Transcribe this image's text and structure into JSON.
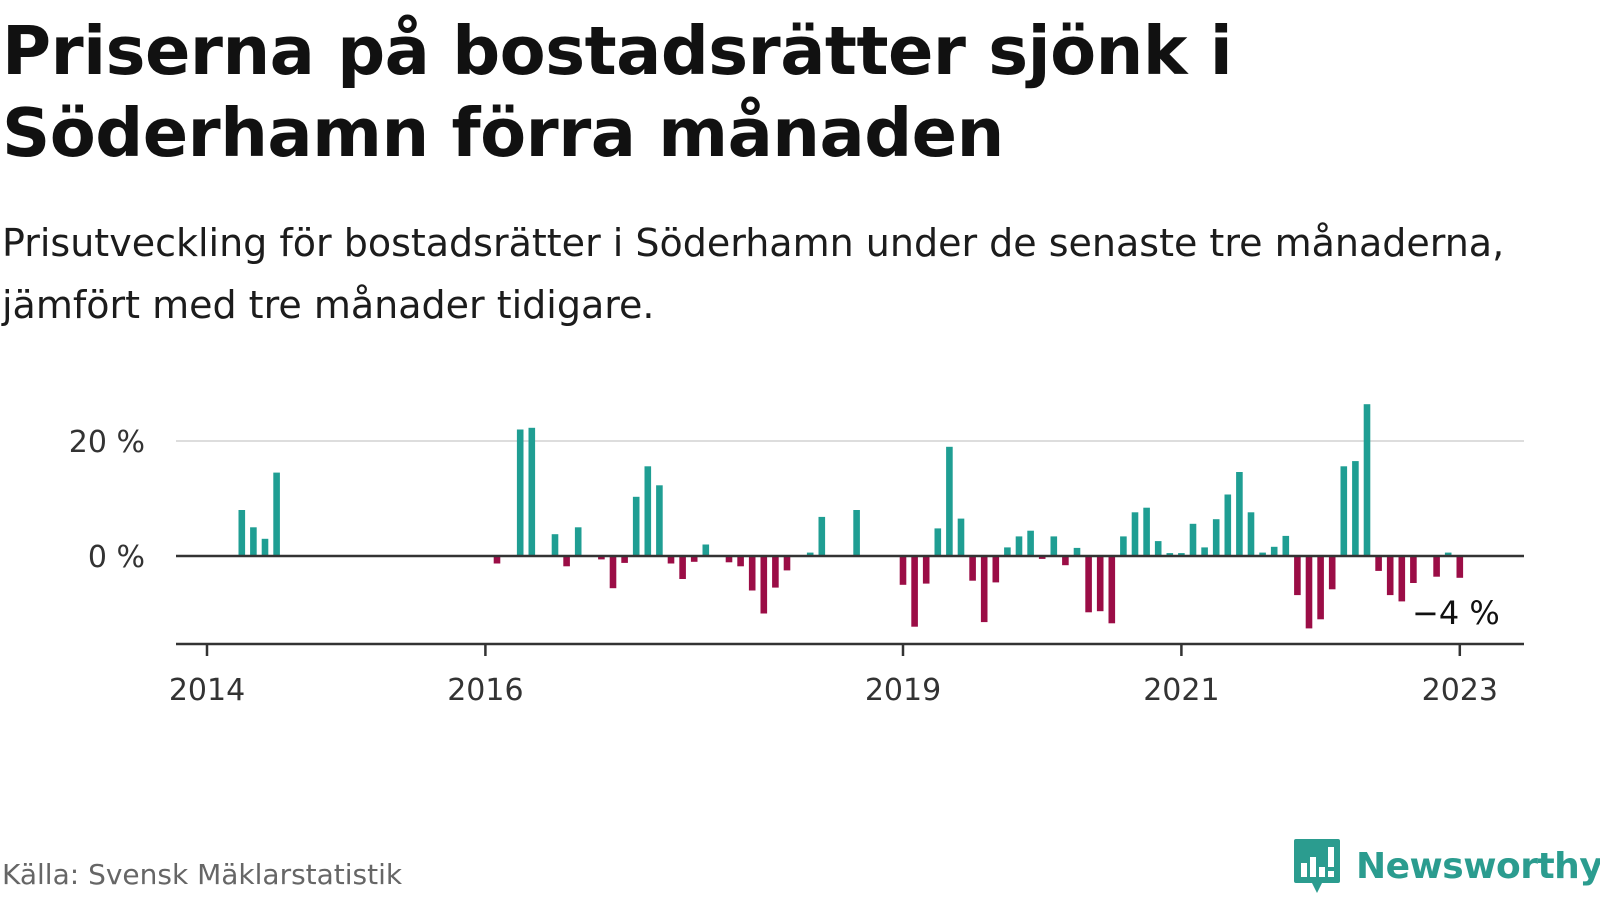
{
  "header": {
    "title": "Priserna på bostadsrätter sjönk i Söderhamn förra månaden",
    "subtitle": "Prisutveckling för bostadsrätter i Söderhamn under de senaste tre månaderna, jämfört med tre månader tidigare."
  },
  "footer": {
    "source": "Källa: Svensk Mäklarstatistik",
    "brand": "Newsworthy"
  },
  "colors": {
    "positive": "#1f9e93",
    "negative": "#9b0d46",
    "axis": "#333333",
    "grid": "#dddddd",
    "text": "#333333"
  },
  "chart_data": {
    "type": "bar",
    "x_unit": "month",
    "x_domain": [
      "2013-09",
      "2023-07"
    ],
    "ylim": [
      -15,
      25
    ],
    "yticks": [
      {
        "value": 20,
        "label": "20 %"
      },
      {
        "value": 0,
        "label": "0 %"
      }
    ],
    "xticks": [
      {
        "date": "2014-01",
        "label": "2014"
      },
      {
        "date": "2016-01",
        "label": "2016"
      },
      {
        "date": "2019-01",
        "label": "2019"
      },
      {
        "date": "2021-01",
        "label": "2021"
      },
      {
        "date": "2023-01",
        "label": "2023"
      }
    ],
    "grid": true,
    "annotation": {
      "date": "2023-01",
      "label": "−4 %",
      "value": -4
    },
    "points": [
      {
        "date": "2014-04",
        "value": 8
      },
      {
        "date": "2014-05",
        "value": 5
      },
      {
        "date": "2014-06",
        "value": 3
      },
      {
        "date": "2014-07",
        "value": 14.5
      },
      {
        "date": "2016-02",
        "value": -1.3
      },
      {
        "date": "2016-04",
        "value": 22
      },
      {
        "date": "2016-05",
        "value": 22.3
      },
      {
        "date": "2016-07",
        "value": 3.8
      },
      {
        "date": "2016-08",
        "value": -1.8
      },
      {
        "date": "2016-09",
        "value": 5
      },
      {
        "date": "2016-11",
        "value": -0.6
      },
      {
        "date": "2016-12",
        "value": -5.6
      },
      {
        "date": "2017-01",
        "value": -1.2
      },
      {
        "date": "2017-02",
        "value": 10.3
      },
      {
        "date": "2017-03",
        "value": 15.6
      },
      {
        "date": "2017-04",
        "value": 12.3
      },
      {
        "date": "2017-05",
        "value": -1.3
      },
      {
        "date": "2017-06",
        "value": -4
      },
      {
        "date": "2017-07",
        "value": -1
      },
      {
        "date": "2017-08",
        "value": 2
      },
      {
        "date": "2017-10",
        "value": -1.1
      },
      {
        "date": "2017-11",
        "value": -1.8
      },
      {
        "date": "2017-12",
        "value": -6
      },
      {
        "date": "2018-01",
        "value": -10
      },
      {
        "date": "2018-02",
        "value": -5.5
      },
      {
        "date": "2018-03",
        "value": -2.5
      },
      {
        "date": "2018-05",
        "value": 0.6
      },
      {
        "date": "2018-06",
        "value": 6.8
      },
      {
        "date": "2018-09",
        "value": 8
      },
      {
        "date": "2019-01",
        "value": -5
      },
      {
        "date": "2019-02",
        "value": -12.3
      },
      {
        "date": "2019-03",
        "value": -4.8
      },
      {
        "date": "2019-04",
        "value": 4.8
      },
      {
        "date": "2019-05",
        "value": 19
      },
      {
        "date": "2019-06",
        "value": 6.5
      },
      {
        "date": "2019-07",
        "value": -4.3
      },
      {
        "date": "2019-08",
        "value": -11.5
      },
      {
        "date": "2019-09",
        "value": -4.6
      },
      {
        "date": "2019-10",
        "value": 1.5
      },
      {
        "date": "2019-11",
        "value": 3.4
      },
      {
        "date": "2019-12",
        "value": 4.4
      },
      {
        "date": "2020-01",
        "value": -0.5
      },
      {
        "date": "2020-02",
        "value": 3.4
      },
      {
        "date": "2020-03",
        "value": -1.6
      },
      {
        "date": "2020-04",
        "value": 1.4
      },
      {
        "date": "2020-05",
        "value": -9.8
      },
      {
        "date": "2020-06",
        "value": -9.6
      },
      {
        "date": "2020-07",
        "value": -11.7
      },
      {
        "date": "2020-08",
        "value": 3.4
      },
      {
        "date": "2020-09",
        "value": 7.6
      },
      {
        "date": "2020-10",
        "value": 8.4
      },
      {
        "date": "2020-11",
        "value": 2.6
      },
      {
        "date": "2020-12",
        "value": 0.5
      },
      {
        "date": "2021-01",
        "value": 0.5
      },
      {
        "date": "2021-02",
        "value": 5.6
      },
      {
        "date": "2021-03",
        "value": 1.5
      },
      {
        "date": "2021-04",
        "value": 6.4
      },
      {
        "date": "2021-05",
        "value": 10.7
      },
      {
        "date": "2021-06",
        "value": 14.6
      },
      {
        "date": "2021-07",
        "value": 7.6
      },
      {
        "date": "2021-08",
        "value": 0.6
      },
      {
        "date": "2021-09",
        "value": 1.6
      },
      {
        "date": "2021-10",
        "value": 3.5
      },
      {
        "date": "2021-11",
        "value": -6.8
      },
      {
        "date": "2021-12",
        "value": -12.6
      },
      {
        "date": "2022-01",
        "value": -11
      },
      {
        "date": "2022-02",
        "value": -5.8
      },
      {
        "date": "2022-03",
        "value": 15.6
      },
      {
        "date": "2022-04",
        "value": 16.5
      },
      {
        "date": "2022-05",
        "value": 26.4
      },
      {
        "date": "2022-06",
        "value": -2.6
      },
      {
        "date": "2022-07",
        "value": -6.8
      },
      {
        "date": "2022-08",
        "value": -7.9
      },
      {
        "date": "2022-09",
        "value": -4.7
      },
      {
        "date": "2022-11",
        "value": -3.6
      },
      {
        "date": "2022-12",
        "value": 0.6
      },
      {
        "date": "2023-01",
        "value": -3.8
      }
    ]
  }
}
